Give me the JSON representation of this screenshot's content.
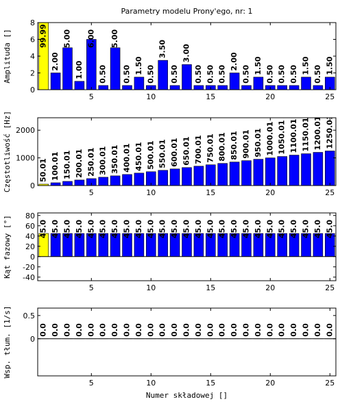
{
  "chart_data": [
    {
      "type": "bar",
      "title": "Parametry modelu Prony'ego, nr: 1",
      "ylabel": "Amplituda []",
      "x": [
        1,
        2,
        3,
        4,
        5,
        6,
        7,
        8,
        9,
        10,
        11,
        12,
        13,
        14,
        15,
        16,
        17,
        18,
        19,
        20,
        21,
        22,
        23,
        24,
        25
      ],
      "values": [
        99.99,
        2,
        5,
        1,
        6,
        0.5,
        5,
        0.5,
        1.5,
        0.5,
        3.5,
        0.5,
        3,
        0.5,
        0.5,
        0.5,
        2,
        0.5,
        1.5,
        0.5,
        0.5,
        0.5,
        1.5,
        0.5,
        1.5
      ],
      "value_labels": [
        "99.99",
        "2.00",
        "5.00",
        "1.00",
        "6.00",
        "0.50",
        "5.00",
        "0.50",
        "1.50",
        "0.50",
        "3.50",
        "0.50",
        "3.00",
        "0.50",
        "0.50",
        "0.50",
        "2.00",
        "0.50",
        "1.50",
        "0.50",
        "0.50",
        "0.50",
        "1.50",
        "0.50",
        "1.50"
      ],
      "colors": [
        "#ffff00",
        "#0000ff",
        "#0000ff",
        "#0000ff",
        "#0000ff",
        "#0000ff",
        "#0000ff",
        "#0000ff",
        "#0000ff",
        "#0000ff",
        "#0000ff",
        "#0000ff",
        "#0000ff",
        "#0000ff",
        "#0000ff",
        "#0000ff",
        "#0000ff",
        "#0000ff",
        "#0000ff",
        "#0000ff",
        "#0000ff",
        "#0000ff",
        "#0000ff",
        "#0000ff",
        "#0000ff"
      ],
      "xlim": [
        0.5,
        25.5
      ],
      "xticks": [
        5,
        10,
        15,
        20,
        25
      ],
      "ylim": [
        0,
        8
      ],
      "yticks": [
        0,
        2,
        4,
        6,
        8
      ]
    },
    {
      "type": "bar",
      "ylabel": "Częstotliwość [Hz]",
      "x": [
        1,
        2,
        3,
        4,
        5,
        6,
        7,
        8,
        9,
        10,
        11,
        12,
        13,
        14,
        15,
        16,
        17,
        18,
        19,
        20,
        21,
        22,
        23,
        24,
        25
      ],
      "values": [
        50.01,
        100.01,
        150.01,
        200.01,
        250.01,
        300.01,
        350.01,
        400.01,
        450.01,
        500.01,
        550.01,
        600.01,
        650.01,
        700.01,
        750.01,
        800.01,
        850.01,
        900.01,
        950.01,
        1000.01,
        1050.01,
        1100.01,
        1150.01,
        1200.01,
        1250.01
      ],
      "colors": [
        "#ffff00",
        "#0000ff",
        "#0000ff",
        "#0000ff",
        "#0000ff",
        "#0000ff",
        "#0000ff",
        "#0000ff",
        "#0000ff",
        "#0000ff",
        "#0000ff",
        "#0000ff",
        "#0000ff",
        "#0000ff",
        "#0000ff",
        "#0000ff",
        "#0000ff",
        "#0000ff",
        "#0000ff",
        "#0000ff",
        "#0000ff",
        "#0000ff",
        "#0000ff",
        "#0000ff",
        "#0000ff"
      ],
      "xlim": [
        0.5,
        25.5
      ],
      "xticks": [
        5,
        10,
        15,
        20,
        25
      ],
      "ylim": [
        0,
        2450
      ],
      "yticks": [
        0,
        1000,
        2000
      ]
    },
    {
      "type": "bar",
      "ylabel": "Kąt fazowy [°]",
      "x": [
        1,
        2,
        3,
        4,
        5,
        6,
        7,
        8,
        9,
        10,
        11,
        12,
        13,
        14,
        15,
        16,
        17,
        18,
        19,
        20,
        21,
        22,
        23,
        24,
        25
      ],
      "values": [
        45,
        45,
        45,
        45,
        45,
        45,
        45,
        45,
        45,
        45,
        45,
        45,
        45,
        45,
        45,
        45,
        45,
        45,
        45,
        45,
        45,
        45,
        45,
        45,
        45
      ],
      "value_labels": [
        "45.0",
        "45.0",
        "45.0",
        "45.0",
        "45.0",
        "45.0",
        "45.0",
        "45.0",
        "45.0",
        "45.0",
        "45.0",
        "45.0",
        "45.0",
        "45.0",
        "45.0",
        "45.0",
        "45.0",
        "45.0",
        "45.0",
        "45.0",
        "45.0",
        "45.0",
        "45.0",
        "45.0",
        "45.0"
      ],
      "colors": [
        "#ffff00",
        "#0000ff",
        "#0000ff",
        "#0000ff",
        "#0000ff",
        "#0000ff",
        "#0000ff",
        "#0000ff",
        "#0000ff",
        "#0000ff",
        "#0000ff",
        "#0000ff",
        "#0000ff",
        "#0000ff",
        "#0000ff",
        "#0000ff",
        "#0000ff",
        "#0000ff",
        "#0000ff",
        "#0000ff",
        "#0000ff",
        "#0000ff",
        "#0000ff",
        "#0000ff",
        "#0000ff"
      ],
      "xlim": [
        0.5,
        25.5
      ],
      "xticks": [
        5,
        10,
        15,
        20,
        25
      ],
      "ylim": [
        -47,
        85
      ],
      "yticks": [
        -40,
        -20,
        0,
        20,
        40,
        60,
        80
      ]
    },
    {
      "type": "bar",
      "ylabel": "Wsp. tłum. [1/s]",
      "xlabel": "Numer składowej []",
      "x": [
        1,
        2,
        3,
        4,
        5,
        6,
        7,
        8,
        9,
        10,
        11,
        12,
        13,
        14,
        15,
        16,
        17,
        18,
        19,
        20,
        21,
        22,
        23,
        24,
        25
      ],
      "values": [
        0,
        0,
        0,
        0,
        0,
        0,
        0,
        0,
        0,
        0,
        0,
        0,
        0,
        0,
        0,
        0,
        0,
        0,
        0,
        0,
        0,
        0,
        0,
        0,
        0
      ],
      "value_labels": [
        "0.0",
        "0.0",
        "0.0",
        "0.0",
        "0.0",
        "0.0",
        "0.0",
        "0.0",
        "0.0",
        "0.0",
        "0.0",
        "0.0",
        "0.0",
        "0.0",
        "0.0",
        "0.0",
        "0.0",
        "0.0",
        "0.0",
        "0.0",
        "0.0",
        "0.0",
        "0.0",
        "0.0",
        "0.0"
      ],
      "colors": [
        "#ffff00",
        "#0000ff",
        "#0000ff",
        "#0000ff",
        "#0000ff",
        "#0000ff",
        "#0000ff",
        "#0000ff",
        "#0000ff",
        "#0000ff",
        "#0000ff",
        "#0000ff",
        "#0000ff",
        "#0000ff",
        "#0000ff",
        "#0000ff",
        "#0000ff",
        "#0000ff",
        "#0000ff",
        "#0000ff",
        "#0000ff",
        "#0000ff",
        "#0000ff",
        "#0000ff",
        "#0000ff"
      ],
      "xlim": [
        0.5,
        25.5
      ],
      "xticks": [
        5,
        10,
        15,
        20,
        25
      ],
      "ylim": [
        -0.8,
        0.66
      ],
      "yticks": [
        0,
        0.5
      ]
    }
  ]
}
